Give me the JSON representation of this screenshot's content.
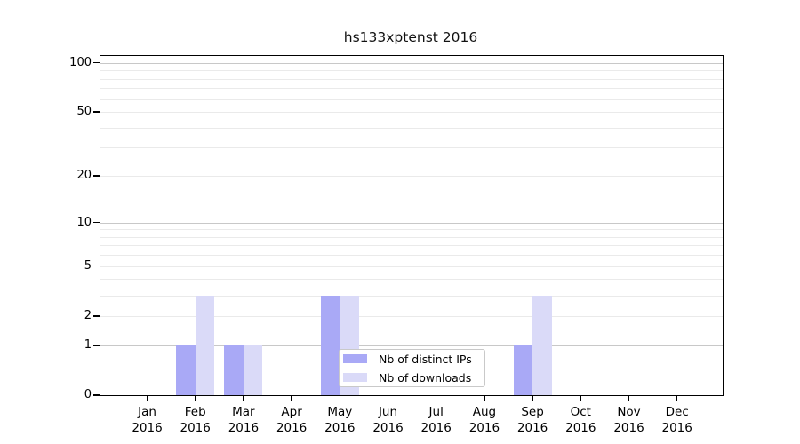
{
  "title": "hs133xptenst 2016",
  "chart_data": {
    "type": "bar",
    "title": "hs133xptenst 2016",
    "xlabel": "",
    "ylabel": "",
    "categories": [
      "Jan",
      "Feb",
      "Mar",
      "Apr",
      "May",
      "Jun",
      "Jul",
      "Aug",
      "Sep",
      "Oct",
      "Nov",
      "Dec"
    ],
    "year": "2016",
    "series": [
      {
        "name": "Nb of distinct IPs",
        "color": "#a9a9f6",
        "values": [
          0,
          1,
          1,
          0,
          3,
          0,
          0,
          0,
          1,
          0,
          0,
          0
        ]
      },
      {
        "name": "Nb of downloads",
        "color": "#dadaf8",
        "values": [
          0,
          3,
          1,
          0,
          3,
          0,
          0,
          0,
          3,
          0,
          0,
          0
        ]
      }
    ],
    "y_scale": "log10(1+value)",
    "y_ticks": [
      0,
      1,
      2,
      5,
      10,
      20,
      50,
      100
    ],
    "y_major_grid": [
      1,
      10,
      100
    ],
    "y_minor_grid": [
      2,
      3,
      4,
      5,
      6,
      7,
      8,
      9,
      20,
      30,
      40,
      50,
      60,
      70,
      80,
      90
    ],
    "ylim": [
      0,
      110
    ],
    "grid_major_color": "#c8c8c8",
    "grid_minor_color": "#eaeaea",
    "legend_position": "lower right inside plot",
    "axis_color": "#000000",
    "background_color": "#ffffff"
  },
  "legend": {
    "items": [
      {
        "label": "Nb of distinct IPs"
      },
      {
        "label": "Nb of downloads"
      }
    ]
  }
}
